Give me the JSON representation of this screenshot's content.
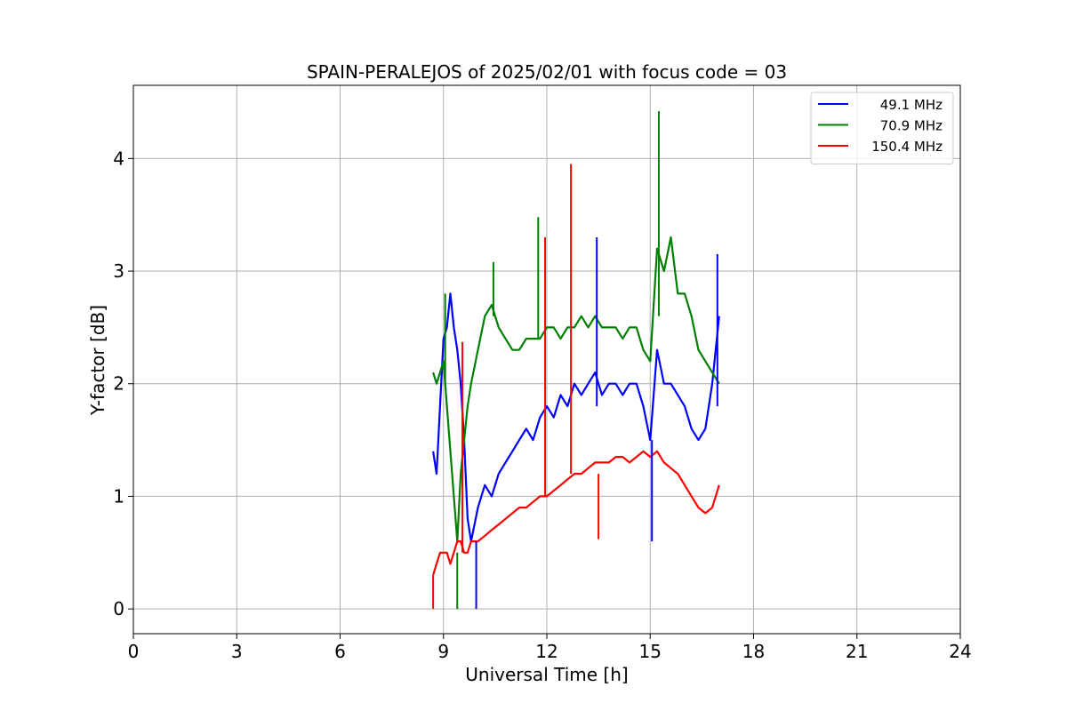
{
  "chart_data": {
    "type": "line",
    "title": "SPAIN-PERALEJOS of 2025/02/01 with focus code = 03",
    "xlabel": "Universal Time [h]",
    "ylabel": "Y-factor [dB]",
    "xlim": [
      0,
      24
    ],
    "ylim": [
      -0.22,
      4.65
    ],
    "xticks": [
      0,
      3,
      6,
      9,
      12,
      15,
      18,
      21,
      24
    ],
    "xtick_labels": [
      "0",
      "3",
      "6",
      "9",
      "12",
      "15",
      "18",
      "21",
      "24"
    ],
    "yticks": [
      0,
      1,
      2,
      3,
      4
    ],
    "ytick_labels": [
      "0",
      "1",
      "2",
      "3",
      "4"
    ],
    "grid": true,
    "legend_position": "top-right",
    "series": [
      {
        "name": "49.1 MHz",
        "color": "#0000ff",
        "x": [
          8.7,
          8.8,
          8.9,
          9.0,
          9.1,
          9.2,
          9.3,
          9.4,
          9.5,
          9.6,
          9.7,
          9.8,
          10.0,
          10.2,
          10.4,
          10.6,
          10.8,
          11.0,
          11.2,
          11.4,
          11.6,
          11.8,
          12.0,
          12.2,
          12.4,
          12.6,
          12.8,
          13.0,
          13.2,
          13.4,
          13.6,
          13.8,
          14.0,
          14.2,
          14.4,
          14.6,
          14.8,
          15.0,
          15.2,
          15.4,
          15.6,
          15.8,
          16.0,
          16.2,
          16.4,
          16.6,
          16.8,
          17.0
        ],
        "y": [
          1.4,
          1.2,
          1.8,
          2.4,
          2.5,
          2.8,
          2.5,
          2.3,
          2.0,
          1.5,
          0.8,
          0.6,
          0.9,
          1.1,
          1.0,
          1.2,
          1.3,
          1.4,
          1.5,
          1.6,
          1.5,
          1.7,
          1.8,
          1.7,
          1.9,
          1.8,
          2.0,
          1.9,
          2.0,
          2.1,
          1.9,
          2.0,
          2.0,
          1.9,
          2.0,
          2.0,
          1.8,
          1.5,
          2.3,
          2.0,
          2.0,
          1.9,
          1.8,
          1.6,
          1.5,
          1.6,
          2.0,
          2.6
        ]
      },
      {
        "name": "70.9 MHz",
        "color": "#008000",
        "x": [
          8.7,
          8.8,
          8.9,
          9.0,
          9.1,
          9.2,
          9.3,
          9.4,
          9.5,
          9.6,
          9.7,
          9.8,
          10.0,
          10.2,
          10.4,
          10.6,
          10.8,
          11.0,
          11.2,
          11.4,
          11.6,
          11.8,
          12.0,
          12.2,
          12.4,
          12.6,
          12.8,
          13.0,
          13.2,
          13.4,
          13.6,
          13.8,
          14.0,
          14.2,
          14.4,
          14.6,
          14.8,
          15.0,
          15.2,
          15.4,
          15.6,
          15.8,
          16.0,
          16.2,
          16.4,
          16.6,
          16.8,
          17.0
        ],
        "y": [
          2.1,
          2.0,
          2.1,
          2.2,
          1.8,
          1.4,
          1.0,
          0.6,
          1.2,
          1.5,
          1.8,
          2.0,
          2.3,
          2.6,
          2.7,
          2.5,
          2.4,
          2.3,
          2.3,
          2.4,
          2.4,
          2.4,
          2.5,
          2.5,
          2.4,
          2.5,
          2.5,
          2.6,
          2.5,
          2.6,
          2.5,
          2.5,
          2.5,
          2.4,
          2.5,
          2.5,
          2.3,
          2.2,
          3.2,
          3.0,
          3.3,
          2.8,
          2.8,
          2.6,
          2.3,
          2.2,
          2.1,
          2.0
        ]
      },
      {
        "name": "150.4 MHz",
        "color": "#ff0000",
        "x": [
          8.7,
          8.8,
          8.9,
          9.0,
          9.1,
          9.2,
          9.3,
          9.4,
          9.5,
          9.6,
          9.7,
          9.8,
          10.0,
          10.2,
          10.4,
          10.6,
          10.8,
          11.0,
          11.2,
          11.4,
          11.6,
          11.8,
          12.0,
          12.2,
          12.4,
          12.6,
          12.8,
          13.0,
          13.2,
          13.4,
          13.6,
          13.8,
          14.0,
          14.2,
          14.4,
          14.6,
          14.8,
          15.0,
          15.2,
          15.4,
          15.6,
          15.8,
          16.0,
          16.2,
          16.4,
          16.6,
          16.8,
          17.0
        ],
        "y": [
          0.3,
          0.4,
          0.5,
          0.5,
          0.5,
          0.4,
          0.5,
          0.6,
          0.6,
          0.5,
          0.5,
          0.6,
          0.6,
          0.65,
          0.7,
          0.75,
          0.8,
          0.85,
          0.9,
          0.9,
          0.95,
          1.0,
          1.0,
          1.05,
          1.1,
          1.15,
          1.2,
          1.2,
          1.25,
          1.3,
          1.3,
          1.3,
          1.35,
          1.35,
          1.3,
          1.35,
          1.4,
          1.35,
          1.4,
          1.3,
          1.25,
          1.2,
          1.1,
          1.0,
          0.9,
          0.85,
          0.9,
          1.1
        ]
      }
    ],
    "spikes": [
      {
        "series": "49.1 MHz",
        "x": 13.45,
        "y0": 1.8,
        "y1": 3.3
      },
      {
        "series": "49.1 MHz",
        "x": 9.95,
        "y0": 0.6,
        "y1": 0.0
      },
      {
        "series": "49.1 MHz",
        "x": 16.95,
        "y0": 1.8,
        "y1": 3.15
      },
      {
        "series": "49.1 MHz",
        "x": 15.05,
        "y0": 1.5,
        "y1": 0.6
      },
      {
        "series": "70.9 MHz",
        "x": 15.25,
        "y0": 2.6,
        "y1": 4.42
      },
      {
        "series": "70.9 MHz",
        "x": 11.75,
        "y0": 2.4,
        "y1": 3.48
      },
      {
        "series": "70.9 MHz",
        "x": 10.45,
        "y0": 2.6,
        "y1": 3.08
      },
      {
        "series": "70.9 MHz",
        "x": 9.4,
        "y0": 0.5,
        "y1": 0.0
      },
      {
        "series": "70.9 MHz",
        "x": 9.05,
        "y0": 2.0,
        "y1": 2.8
      },
      {
        "series": "150.4 MHz",
        "x": 12.7,
        "y0": 1.2,
        "y1": 3.95
      },
      {
        "series": "150.4 MHz",
        "x": 11.95,
        "y0": 1.0,
        "y1": 3.3
      },
      {
        "series": "150.4 MHz",
        "x": 9.55,
        "y0": 0.5,
        "y1": 2.37
      },
      {
        "series": "150.4 MHz",
        "x": 8.7,
        "y0": 0.3,
        "y1": 0.0
      },
      {
        "series": "150.4 MHz",
        "x": 13.5,
        "y0": 1.2,
        "y1": 0.62
      }
    ]
  }
}
